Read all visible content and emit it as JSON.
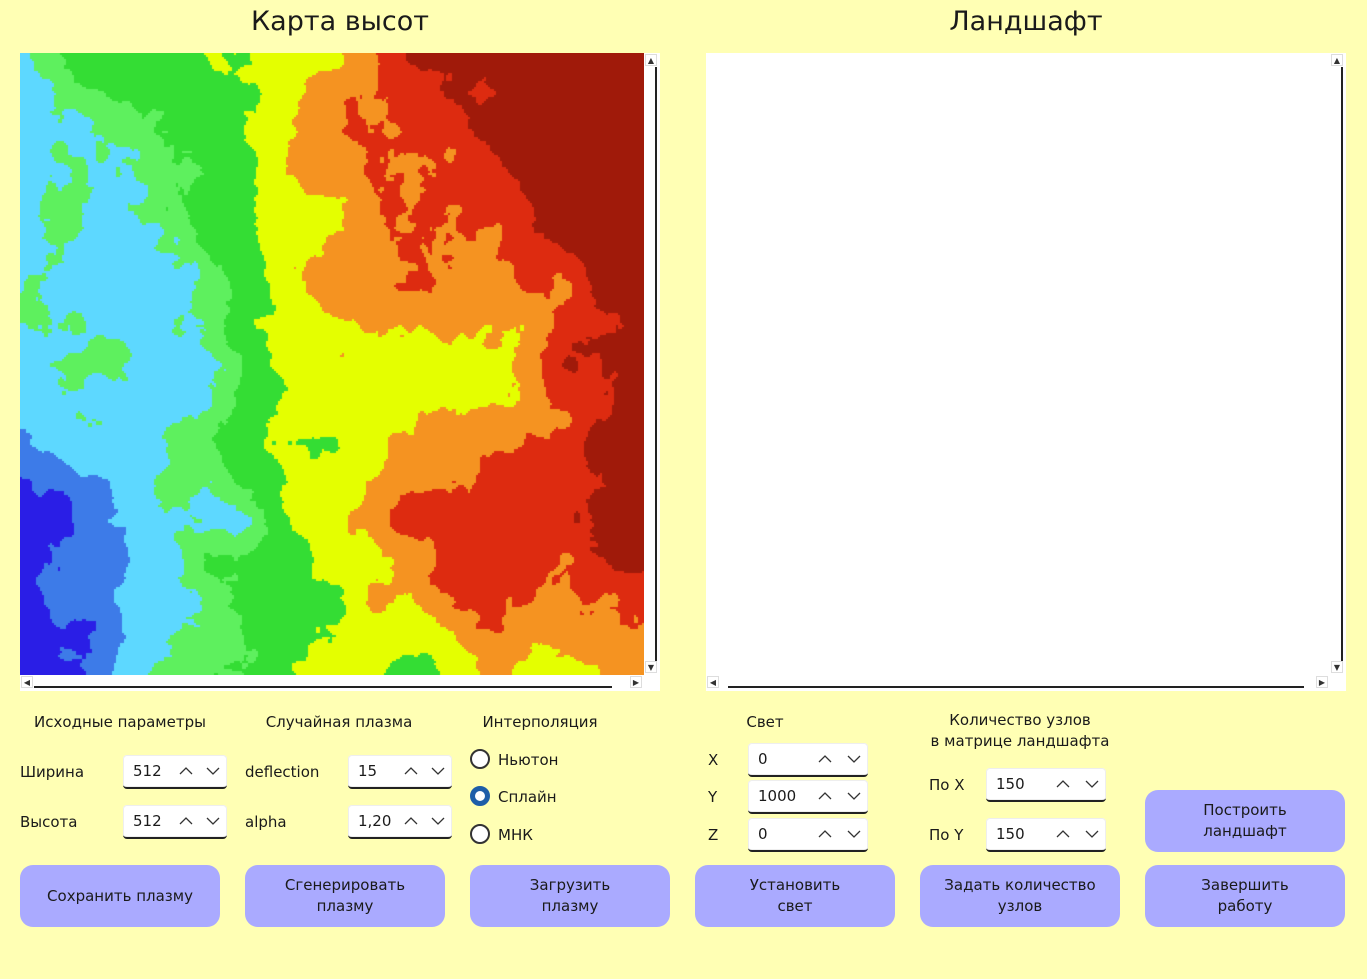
{
  "titles": {
    "heightmap": "Карта высот",
    "landscape": "Ландшафт"
  },
  "colors": {
    "background": "#ffffb4",
    "button": "#aaaaff",
    "heightmap_palette": [
      "#2a1ee6",
      "#3d7be8",
      "#5dd8ff",
      "#5ef05e",
      "#34dd34",
      "#e4ff00",
      "#f59321",
      "#dd2b10",
      "#a01a0a"
    ]
  },
  "sections": {
    "source": "Исходные параметры",
    "plasma": "Случайная плазма",
    "interp": "Интерполяция",
    "light": "Свет",
    "nodes": "Количество узлов\nв матрице ландшафта"
  },
  "source": {
    "width_label": "Ширина",
    "width_value": "512",
    "height_label": "Высота",
    "height_value": "512"
  },
  "plasma": {
    "deflection_label": "deflection",
    "deflection_value": "15",
    "alpha_label": "alpha",
    "alpha_value": "1,20"
  },
  "interp": {
    "options": [
      "Ньютон",
      "Сплайн",
      "МНК"
    ],
    "selected": "Сплайн"
  },
  "light": {
    "x_label": "X",
    "x_value": "0",
    "y_label": "Y",
    "y_value": "1000",
    "z_label": "Z",
    "z_value": "0"
  },
  "nodes": {
    "x_label": "По X",
    "x_value": "150",
    "y_label": "По Y",
    "y_value": "150"
  },
  "buttons": {
    "save_plasma": "Сохранить плазму",
    "generate_plasma": "Сгенерировать\nплазму",
    "load_plasma": "Загрузить\nплазму",
    "set_light": "Установить\nсвет",
    "set_nodes": "Задать количество\nузлов",
    "build_landscape": "Построить\nландшафт",
    "exit": "Завершить\nработу"
  }
}
